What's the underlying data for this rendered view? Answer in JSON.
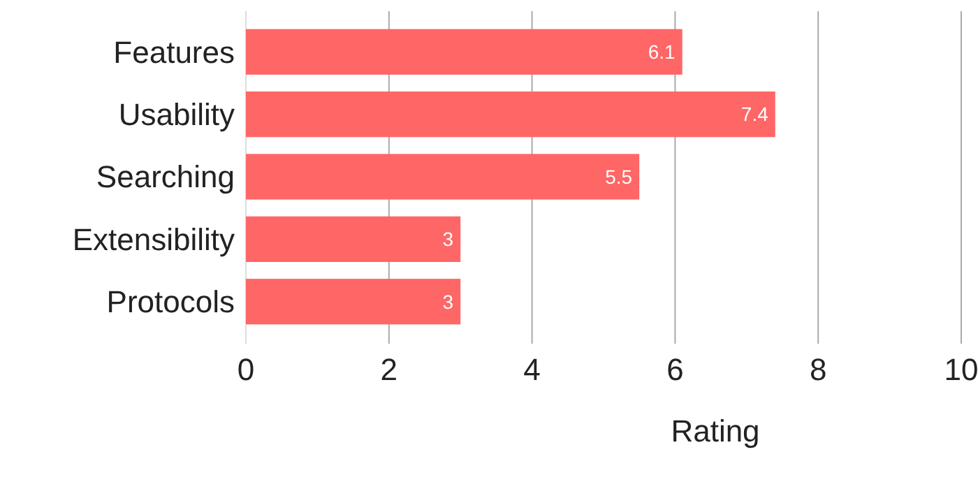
{
  "chart_data": {
    "type": "bar",
    "orientation": "horizontal",
    "categories": [
      "Features",
      "Usability",
      "Searching",
      "Extensibility",
      "Protocols"
    ],
    "values": [
      6.1,
      7.4,
      5.5,
      3,
      3
    ],
    "color": "#ff6666",
    "xlim": [
      0,
      10
    ],
    "xticks": [
      0,
      2,
      4,
      6,
      8,
      10
    ],
    "xlabel": "Rating",
    "grid": "x",
    "data_labels": true
  }
}
